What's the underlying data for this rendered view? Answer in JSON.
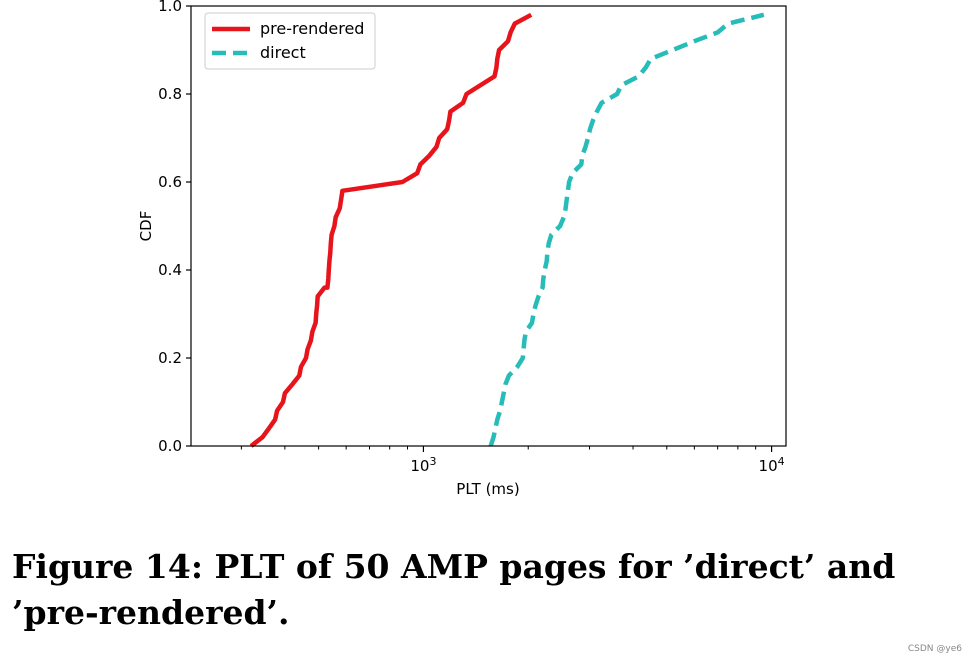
{
  "chart_data": {
    "type": "line",
    "title": "",
    "xlabel": "PLT (ms)",
    "ylabel": "CDF",
    "xscale": "log",
    "xlim": [
      215,
      11000
    ],
    "ylim": [
      0,
      1.0
    ],
    "x_ticks": [
      {
        "value": 1000,
        "base": "10",
        "exp": "3"
      },
      {
        "value": 10000,
        "base": "10",
        "exp": "4"
      }
    ],
    "y_ticks": [
      "0.0",
      "0.2",
      "0.4",
      "0.6",
      "0.8",
      "1.0"
    ],
    "legend_position": "upper-left",
    "series": [
      {
        "name": "pre-rendered",
        "color": "#e8141c",
        "style": "solid",
        "points": [
          [
            320,
            0.0
          ],
          [
            345,
            0.02
          ],
          [
            360,
            0.04
          ],
          [
            375,
            0.06
          ],
          [
            380,
            0.08
          ],
          [
            395,
            0.1
          ],
          [
            400,
            0.12
          ],
          [
            420,
            0.14
          ],
          [
            440,
            0.16
          ],
          [
            445,
            0.18
          ],
          [
            460,
            0.2
          ],
          [
            465,
            0.22
          ],
          [
            475,
            0.24
          ],
          [
            480,
            0.26
          ],
          [
            490,
            0.28
          ],
          [
            492,
            0.3
          ],
          [
            495,
            0.32
          ],
          [
            497,
            0.34
          ],
          [
            520,
            0.36
          ],
          [
            530,
            0.36
          ],
          [
            533,
            0.38
          ],
          [
            535,
            0.4
          ],
          [
            537,
            0.42
          ],
          [
            540,
            0.44
          ],
          [
            542,
            0.46
          ],
          [
            545,
            0.48
          ],
          [
            555,
            0.5
          ],
          [
            560,
            0.52
          ],
          [
            575,
            0.54
          ],
          [
            580,
            0.56
          ],
          [
            585,
            0.58
          ],
          [
            870,
            0.6
          ],
          [
            960,
            0.62
          ],
          [
            980,
            0.64
          ],
          [
            1040,
            0.66
          ],
          [
            1090,
            0.68
          ],
          [
            1110,
            0.7
          ],
          [
            1170,
            0.72
          ],
          [
            1185,
            0.74
          ],
          [
            1195,
            0.76
          ],
          [
            1300,
            0.78
          ],
          [
            1330,
            0.8
          ],
          [
            1600,
            0.84
          ],
          [
            1620,
            0.86
          ],
          [
            1630,
            0.88
          ],
          [
            1650,
            0.9
          ],
          [
            1750,
            0.92
          ],
          [
            1780,
            0.94
          ],
          [
            1830,
            0.96
          ],
          [
            2040,
            0.98
          ]
        ]
      },
      {
        "name": "direct",
        "color": "#27bcb8",
        "style": "dashed",
        "points": [
          [
            1560,
            0.0
          ],
          [
            1590,
            0.02
          ],
          [
            1610,
            0.04
          ],
          [
            1630,
            0.06
          ],
          [
            1660,
            0.08
          ],
          [
            1680,
            0.1
          ],
          [
            1700,
            0.12
          ],
          [
            1720,
            0.14
          ],
          [
            1760,
            0.16
          ],
          [
            1860,
            0.18
          ],
          [
            1930,
            0.2
          ],
          [
            1940,
            0.22
          ],
          [
            1950,
            0.24
          ],
          [
            1970,
            0.26
          ],
          [
            2050,
            0.28
          ],
          [
            2070,
            0.3
          ],
          [
            2100,
            0.32
          ],
          [
            2140,
            0.34
          ],
          [
            2200,
            0.36
          ],
          [
            2210,
            0.38
          ],
          [
            2230,
            0.4
          ],
          [
            2260,
            0.42
          ],
          [
            2270,
            0.44
          ],
          [
            2290,
            0.46
          ],
          [
            2330,
            0.48
          ],
          [
            2470,
            0.5
          ],
          [
            2530,
            0.52
          ],
          [
            2560,
            0.54
          ],
          [
            2580,
            0.56
          ],
          [
            2600,
            0.58
          ],
          [
            2620,
            0.6
          ],
          [
            2680,
            0.62
          ],
          [
            2840,
            0.64
          ],
          [
            2860,
            0.66
          ],
          [
            2920,
            0.68
          ],
          [
            2970,
            0.7
          ],
          [
            3010,
            0.72
          ],
          [
            3070,
            0.74
          ],
          [
            3150,
            0.76
          ],
          [
            3250,
            0.78
          ],
          [
            3600,
            0.8
          ],
          [
            3700,
            0.82
          ],
          [
            4150,
            0.84
          ],
          [
            4350,
            0.86
          ],
          [
            4500,
            0.88
          ],
          [
            5200,
            0.9
          ],
          [
            6000,
            0.92
          ],
          [
            7000,
            0.94
          ],
          [
            7500,
            0.96
          ],
          [
            9500,
            0.98
          ]
        ]
      }
    ]
  },
  "caption": "Figure 14: PLT of 50 AMP pages for ’direct’ and ’pre-rendered’.",
  "watermark": "CSDN @ye6"
}
